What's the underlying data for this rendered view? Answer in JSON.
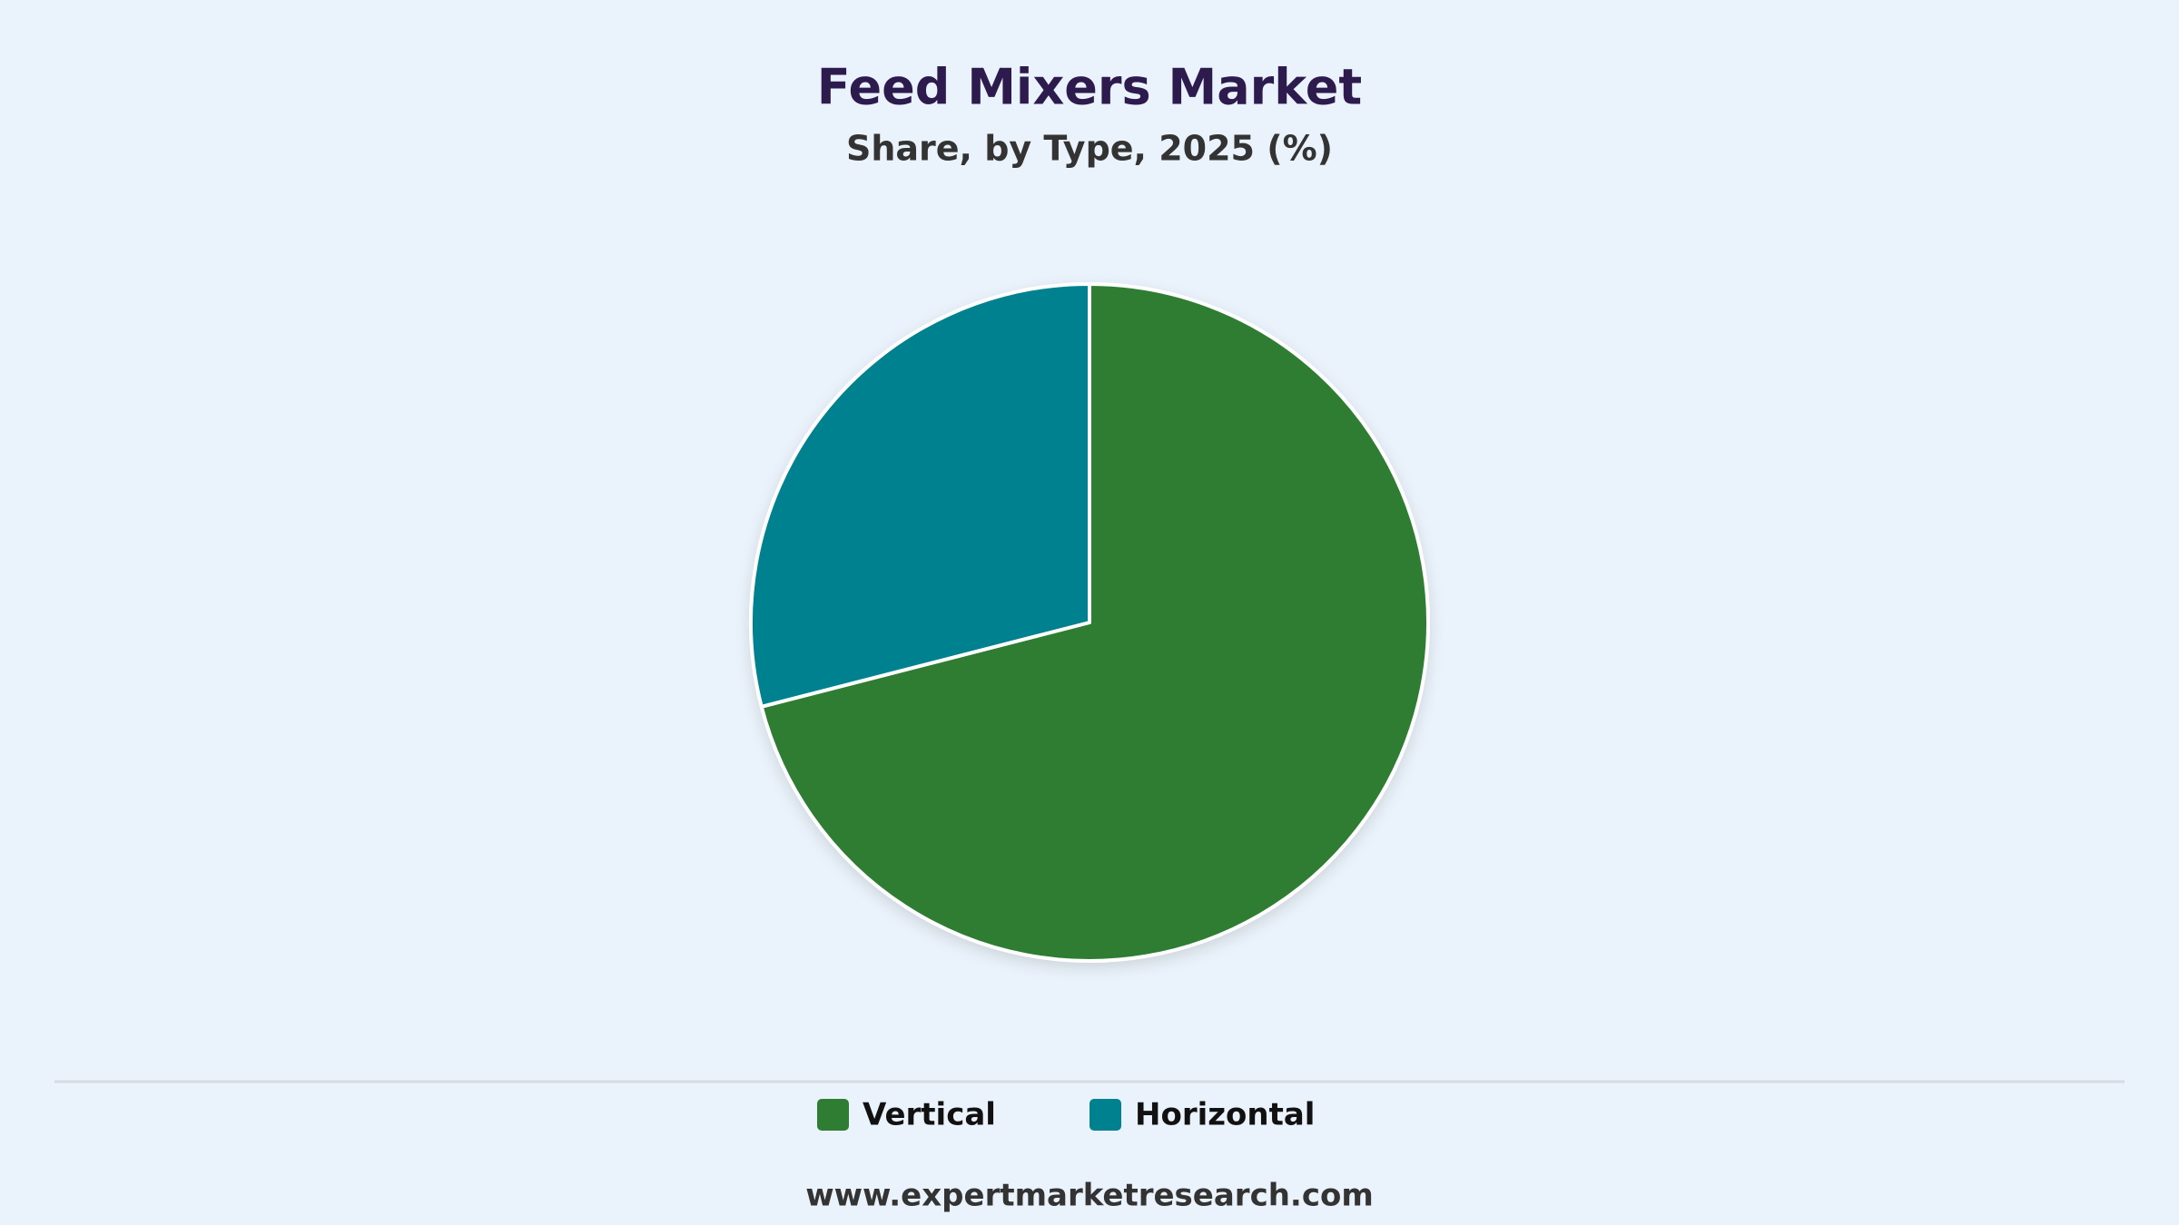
{
  "chart_data": {
    "type": "pie",
    "title": "Feed Mixers Market",
    "subtitle": "Share, by Type, 2025 (%)",
    "categories": [
      "Vertical",
      "Horizontal"
    ],
    "values": [
      71,
      29
    ],
    "colors": [
      "#2f7d32",
      "#00818f"
    ],
    "legend": "bottom",
    "source": "www.expertmarketresearch.com"
  }
}
